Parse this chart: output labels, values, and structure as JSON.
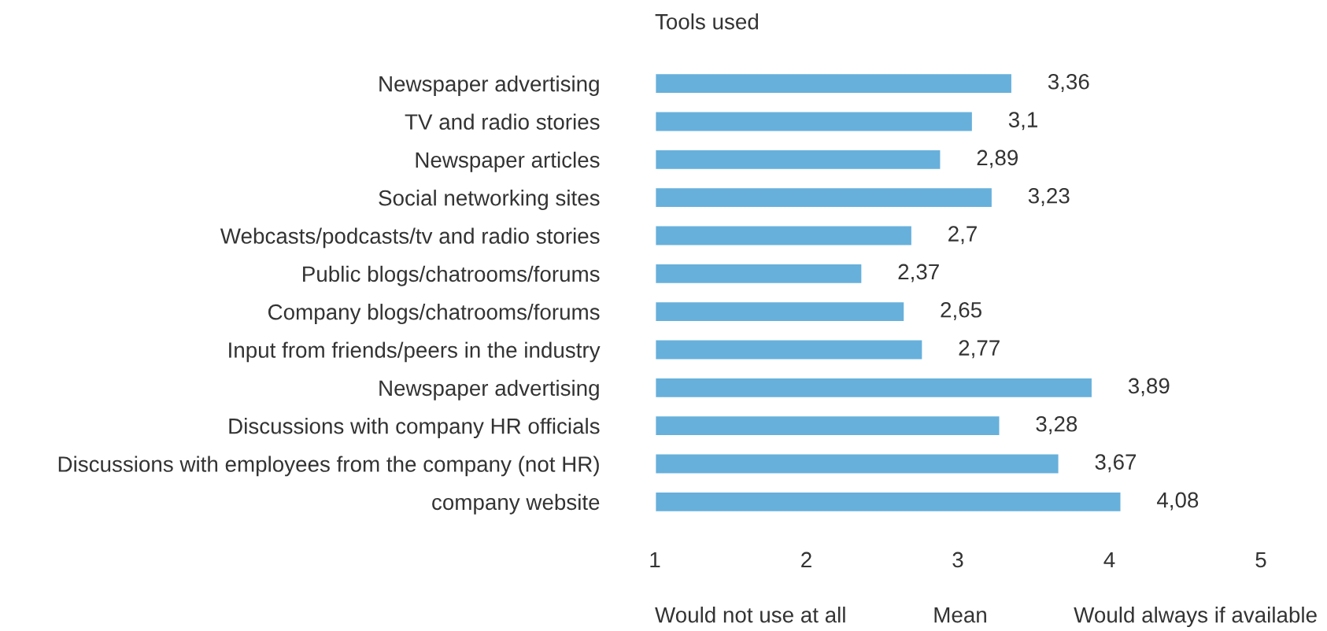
{
  "chart_data": {
    "type": "bar",
    "orientation": "horizontal",
    "title": "Tools used",
    "categories": [
      "Newspaper advertising",
      "TV and radio stories",
      "Newspaper articles",
      "Social networking sites",
      "Webcasts/podcasts/tv and radio stories",
      "Public blogs/chatrooms/forums",
      "Company blogs/chatrooms/forums",
      "Input from friends/peers in the industry",
      "Newspaper advertising",
      "Discussions with company HR officials",
      "Discussions with employees from the company (not HR)",
      "company website"
    ],
    "values": [
      3.36,
      3.1,
      2.89,
      3.23,
      2.7,
      2.37,
      2.65,
      2.77,
      3.89,
      3.28,
      3.67,
      4.08
    ],
    "value_labels": [
      "3,36",
      "3,1",
      "2,89",
      "3,23",
      "2,7",
      "2,37",
      "2,65",
      "2,77",
      "3,89",
      "3,28",
      "3,67",
      "4,08"
    ],
    "color": "#67b0db",
    "xlim": [
      1,
      5
    ],
    "xticks": [
      1,
      2,
      3,
      4,
      5
    ],
    "grid": false,
    "legend": false,
    "annotations": [
      "Would not use at all",
      "Mean",
      "Would always if available"
    ]
  }
}
